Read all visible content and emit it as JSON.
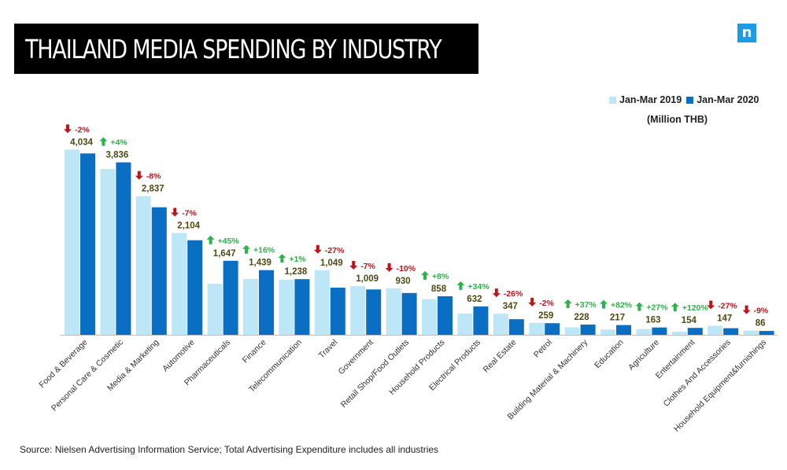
{
  "header": {
    "title": "THAILAND MEDIA SPENDING BY INDUSTRY",
    "logo_letter": "n"
  },
  "legend": {
    "series_2019": "Jan-Mar 2019",
    "series_2020": "Jan-Mar 2020",
    "unit": "(Million THB)"
  },
  "footer": {
    "source": "Source: Nielsen Advertising Information Service; Total Advertising Expenditure includes all industries"
  },
  "colors": {
    "light_blue": "#bde6f6",
    "dark_blue": "#0a6fc2",
    "up_green": "#2eb24a",
    "down_red": "#c0141c",
    "value_text": "#4f4a14"
  },
  "chart_data": {
    "type": "bar",
    "categories": [
      "Food & Beverage",
      "Personal Care & Cosmetic",
      "Media & Marketing",
      "Automotive",
      "Pharmaceuticals",
      "Finance",
      "Telecommunication",
      "Travel",
      "Government",
      "Retail Shop/Food Outlets",
      "Household Products",
      "Electrical Products",
      "Real Estate",
      "Petrol",
      "Building Material & Machinery",
      "Education",
      "Agriculture",
      "Entertainment",
      "Clothes And Accessories",
      "Household Equipment&furnishings"
    ],
    "series": [
      {
        "name": "Jan-Mar 2019",
        "values": [
          4120,
          3688,
          3084,
          2263,
          1136,
          1240,
          1225,
          1437,
          1085,
          1033,
          793,
          472,
          469,
          265,
          166,
          119,
          128,
          70,
          201,
          95
        ]
      },
      {
        "name": "Jan-Mar 2020",
        "values": [
          4034,
          3836,
          2837,
          2104,
          1647,
          1439,
          1238,
          1049,
          1009,
          930,
          858,
          632,
          347,
          259,
          228,
          217,
          163,
          154,
          147,
          86
        ]
      }
    ],
    "value_labels": [
      "4,034",
      "3,836",
      "2,837",
      "2,104",
      "1,647",
      "1,439",
      "1,238",
      "1,049",
      "1,009",
      "930",
      "858",
      "632",
      "347",
      "259",
      "228",
      "217",
      "163",
      "154",
      "147",
      "86"
    ],
    "changes": [
      "-2%",
      "+4%",
      "-8%",
      "-7%",
      "+45%",
      "+16%",
      "+1%",
      "-27%",
      "-7%",
      "-10%",
      "+8%",
      "+34%",
      "-26%",
      "-2%",
      "+37%",
      "+82%",
      "+27%",
      "+120%",
      "-27%",
      "-9%"
    ],
    "ylim": [
      0,
      4200
    ],
    "grid": false,
    "legend_position": "top-right"
  }
}
